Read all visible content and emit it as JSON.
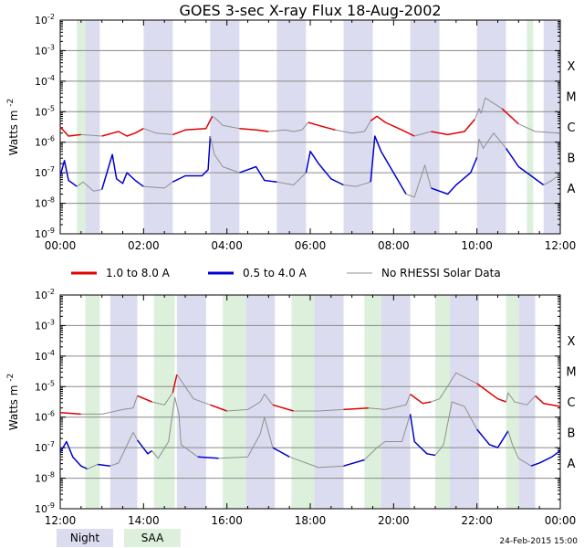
{
  "chart_data": {
    "type": "line",
    "title": "GOES 3-sec X-ray Flux   18-Aug-2002",
    "ylabel_base": "Watts m",
    "ylabel_exp": "-2",
    "footer_timestamp": "24-Feb-2015 15:00",
    "y_log_range": [
      -9,
      -2
    ],
    "y_ticks": [
      -9,
      -8,
      -7,
      -6,
      -5,
      -4,
      -3,
      -2
    ],
    "class_labels": [
      {
        "label": "X",
        "logv": -3.5
      },
      {
        "label": "M",
        "logv": -4.5
      },
      {
        "label": "C",
        "logv": -5.5
      },
      {
        "label": "B",
        "logv": -6.5
      },
      {
        "label": "A",
        "logv": -7.5
      }
    ],
    "legend": [
      {
        "label": "1.0 to 8.0 A",
        "color": "#e00000"
      },
      {
        "label": "0.5 to 4.0 A",
        "color": "#0000d0"
      },
      {
        "label": "No RHESSI Solar Data",
        "color": "#909090"
      }
    ],
    "band_legend": [
      {
        "label": "Night",
        "color": "#dcdcf0"
      },
      {
        "label": "SAA",
        "color": "#dcf0dc"
      }
    ],
    "panels": [
      {
        "x_range": [
          0,
          12
        ],
        "x_ticks": [
          "00:00",
          "02:00",
          "04:00",
          "06:00",
          "08:00",
          "10:00",
          "12:00"
        ],
        "saa": [
          [
            0.4,
            0.6
          ],
          [
            11.2,
            11.35
          ]
        ],
        "night": [
          [
            0.6,
            0.95
          ],
          [
            2.0,
            2.7
          ],
          [
            3.6,
            4.3
          ],
          [
            5.2,
            5.9
          ],
          [
            6.8,
            7.5
          ],
          [
            8.4,
            9.1
          ],
          [
            10.0,
            10.7
          ],
          [
            11.6,
            12.0
          ]
        ],
        "long_series": [
          [
            0,
            -5.5
          ],
          [
            0.2,
            -5.8
          ],
          [
            0.5,
            -5.75
          ],
          [
            1.0,
            -5.8
          ],
          [
            1.4,
            -5.65
          ],
          [
            1.6,
            -5.8
          ],
          [
            1.8,
            -5.7
          ],
          [
            2.0,
            -5.55
          ],
          [
            2.3,
            -5.7
          ],
          [
            2.7,
            -5.75
          ],
          [
            3.0,
            -5.6
          ],
          [
            3.5,
            -5.55
          ],
          [
            3.65,
            -5.15
          ],
          [
            3.75,
            -5.25
          ],
          [
            3.9,
            -5.45
          ],
          [
            4.3,
            -5.55
          ],
          [
            4.7,
            -5.6
          ],
          [
            5.0,
            -5.65
          ],
          [
            5.4,
            -5.6
          ],
          [
            5.6,
            -5.65
          ],
          [
            5.8,
            -5.6
          ],
          [
            5.95,
            -5.35
          ],
          [
            6.2,
            -5.45
          ],
          [
            6.6,
            -5.6
          ],
          [
            7.0,
            -5.7
          ],
          [
            7.3,
            -5.65
          ],
          [
            7.45,
            -5.3
          ],
          [
            7.6,
            -5.15
          ],
          [
            7.8,
            -5.35
          ],
          [
            8.2,
            -5.6
          ],
          [
            8.5,
            -5.8
          ],
          [
            8.9,
            -5.65
          ],
          [
            9.3,
            -5.75
          ],
          [
            9.7,
            -5.65
          ],
          [
            9.95,
            -5.25
          ],
          [
            10.05,
            -4.9
          ],
          [
            10.1,
            -5.05
          ],
          [
            10.2,
            -4.55
          ],
          [
            10.6,
            -4.9
          ],
          [
            11.0,
            -5.4
          ],
          [
            11.4,
            -5.65
          ],
          [
            12.0,
            -5.7
          ]
        ],
        "short_series": [
          [
            0,
            -7.1
          ],
          [
            0.1,
            -6.6
          ],
          [
            0.2,
            -7.25
          ],
          [
            0.4,
            -7.45
          ],
          [
            0.55,
            -7.3
          ],
          [
            0.8,
            -7.6
          ],
          [
            1.0,
            -7.55
          ],
          [
            1.25,
            -6.4
          ],
          [
            1.35,
            -7.2
          ],
          [
            1.5,
            -7.35
          ],
          [
            1.6,
            -7.0
          ],
          [
            1.8,
            -7.25
          ],
          [
            2.0,
            -7.45
          ],
          [
            2.5,
            -7.5
          ],
          [
            2.7,
            -7.3
          ],
          [
            3.0,
            -7.1
          ],
          [
            3.4,
            -7.1
          ],
          [
            3.55,
            -6.9
          ],
          [
            3.6,
            -5.8
          ],
          [
            3.7,
            -6.4
          ],
          [
            3.9,
            -6.8
          ],
          [
            4.3,
            -7.0
          ],
          [
            4.5,
            -6.9
          ],
          [
            4.7,
            -6.8
          ],
          [
            4.9,
            -7.25
          ],
          [
            5.2,
            -7.3
          ],
          [
            5.6,
            -7.4
          ],
          [
            5.9,
            -7.0
          ],
          [
            6.0,
            -6.3
          ],
          [
            6.2,
            -6.7
          ],
          [
            6.5,
            -7.2
          ],
          [
            6.8,
            -7.4
          ],
          [
            7.1,
            -7.45
          ],
          [
            7.45,
            -7.3
          ],
          [
            7.55,
            -5.8
          ],
          [
            7.7,
            -6.3
          ],
          [
            8.0,
            -7.0
          ],
          [
            8.3,
            -7.7
          ],
          [
            8.5,
            -7.8
          ],
          [
            8.75,
            -6.75
          ],
          [
            8.9,
            -7.5
          ],
          [
            9.3,
            -7.7
          ],
          [
            9.5,
            -7.4
          ],
          [
            9.85,
            -7.0
          ],
          [
            10.0,
            -6.5
          ],
          [
            10.05,
            -5.9
          ],
          [
            10.15,
            -6.2
          ],
          [
            10.4,
            -5.7
          ],
          [
            10.7,
            -6.2
          ],
          [
            11.0,
            -6.8
          ],
          [
            11.3,
            -7.1
          ],
          [
            11.6,
            -7.4
          ],
          [
            11.8,
            -7.25
          ],
          [
            12.0,
            -7.05
          ]
        ]
      },
      {
        "x_range": [
          12,
          24
        ],
        "x_ticks": [
          "12:00",
          "14:00",
          "16:00",
          "18:00",
          "20:00",
          "22:00",
          "00:00"
        ],
        "saa": [
          [
            12.6,
            12.95
          ],
          [
            14.25,
            14.75
          ],
          [
            15.9,
            16.45
          ],
          [
            17.55,
            18.1
          ],
          [
            19.3,
            19.7
          ],
          [
            21.0,
            21.35
          ],
          [
            22.7,
            23.0
          ]
        ],
        "night": [
          [
            13.2,
            13.85
          ],
          [
            14.8,
            15.5
          ],
          [
            16.45,
            17.15
          ],
          [
            18.1,
            18.8
          ],
          [
            19.7,
            20.4
          ],
          [
            21.35,
            22.05
          ],
          [
            23.0,
            23.4
          ]
        ],
        "long_series": [
          [
            12.0,
            -5.85
          ],
          [
            12.5,
            -5.9
          ],
          [
            13.0,
            -5.9
          ],
          [
            13.5,
            -5.75
          ],
          [
            13.75,
            -5.7
          ],
          [
            13.85,
            -5.3
          ],
          [
            14.2,
            -5.5
          ],
          [
            14.5,
            -5.6
          ],
          [
            14.7,
            -5.2
          ],
          [
            14.8,
            -4.6
          ],
          [
            14.9,
            -4.8
          ],
          [
            15.2,
            -5.4
          ],
          [
            15.6,
            -5.6
          ],
          [
            16.0,
            -5.8
          ],
          [
            16.5,
            -5.75
          ],
          [
            16.8,
            -5.5
          ],
          [
            16.9,
            -5.25
          ],
          [
            17.1,
            -5.6
          ],
          [
            17.6,
            -5.8
          ],
          [
            18.2,
            -5.8
          ],
          [
            18.8,
            -5.75
          ],
          [
            19.4,
            -5.7
          ],
          [
            19.8,
            -5.75
          ],
          [
            20.3,
            -5.6
          ],
          [
            20.4,
            -5.25
          ],
          [
            20.7,
            -5.55
          ],
          [
            20.9,
            -5.5
          ],
          [
            21.1,
            -5.4
          ],
          [
            21.2,
            -5.2
          ],
          [
            21.5,
            -4.55
          ],
          [
            22.0,
            -4.9
          ],
          [
            22.5,
            -5.4
          ],
          [
            22.7,
            -5.5
          ],
          [
            22.75,
            -5.2
          ],
          [
            22.9,
            -5.5
          ],
          [
            23.2,
            -5.6
          ],
          [
            23.4,
            -5.3
          ],
          [
            23.6,
            -5.55
          ],
          [
            24.0,
            -5.65
          ]
        ],
        "short_series": [
          [
            12.0,
            -7.15
          ],
          [
            12.15,
            -6.8
          ],
          [
            12.3,
            -7.3
          ],
          [
            12.5,
            -7.6
          ],
          [
            12.65,
            -7.7
          ],
          [
            12.9,
            -7.55
          ],
          [
            13.2,
            -7.6
          ],
          [
            13.4,
            -7.5
          ],
          [
            13.75,
            -6.5
          ],
          [
            13.85,
            -6.75
          ],
          [
            14.1,
            -7.2
          ],
          [
            14.2,
            -7.1
          ],
          [
            14.35,
            -7.35
          ],
          [
            14.6,
            -6.8
          ],
          [
            14.75,
            -5.35
          ],
          [
            14.85,
            -5.9
          ],
          [
            14.9,
            -6.9
          ],
          [
            15.3,
            -7.3
          ],
          [
            15.8,
            -7.35
          ],
          [
            16.5,
            -7.3
          ],
          [
            16.8,
            -6.55
          ],
          [
            16.9,
            -6.0
          ],
          [
            17.1,
            -7.0
          ],
          [
            17.5,
            -7.3
          ],
          [
            18.2,
            -7.65
          ],
          [
            18.8,
            -7.6
          ],
          [
            19.3,
            -7.4
          ],
          [
            19.6,
            -7.0
          ],
          [
            19.8,
            -6.8
          ],
          [
            20.2,
            -6.8
          ],
          [
            20.4,
            -5.9
          ],
          [
            20.5,
            -6.8
          ],
          [
            20.8,
            -7.2
          ],
          [
            21.0,
            -7.25
          ],
          [
            21.2,
            -6.9
          ],
          [
            21.4,
            -5.5
          ],
          [
            21.7,
            -5.65
          ],
          [
            22.0,
            -6.4
          ],
          [
            22.3,
            -6.9
          ],
          [
            22.5,
            -7.0
          ],
          [
            22.75,
            -6.45
          ],
          [
            22.85,
            -6.9
          ],
          [
            23.0,
            -7.35
          ],
          [
            23.3,
            -7.6
          ],
          [
            23.5,
            -7.5
          ],
          [
            23.8,
            -7.3
          ],
          [
            24.0,
            -7.1
          ]
        ]
      }
    ]
  }
}
